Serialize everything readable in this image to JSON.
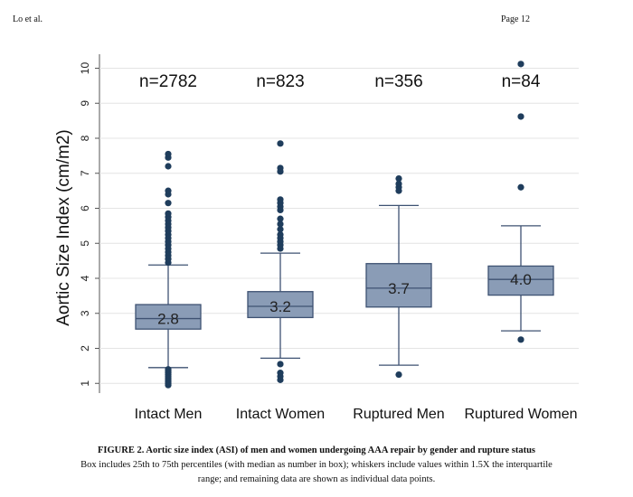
{
  "header": {
    "left": "Lo et al.",
    "right": "Page 12"
  },
  "caption": {
    "title": "FIGURE 2. Aortic size index (ASI) of men and women undergoing AAA repair by gender and rupture status",
    "line1": "Box includes 25th to 75th percentiles (with median as number in box); whiskers include values within 1.5X the interquartile",
    "line2": "range; and remaining data are shown as individual data points."
  },
  "chart_data": {
    "type": "box",
    "title": "",
    "xlabel": "",
    "ylabel": "Aortic Size Index (cm/m2)",
    "ylim": [
      0.8,
      10.4
    ],
    "yticks": [
      1,
      2,
      3,
      4,
      5,
      6,
      7,
      8,
      9,
      10
    ],
    "grid": true,
    "categories": [
      "Intact Men",
      "Intact Women",
      "Ruptured Men",
      "Ruptured Women"
    ],
    "groups": [
      {
        "name": "Intact Men",
        "n_label": "n=2782",
        "median_label": "2.8",
        "q1": 2.55,
        "median": 2.85,
        "q3": 3.25,
        "whisker_low": 1.45,
        "whisker_high": 4.38,
        "outliers": [
          0.95,
          1.0,
          1.05,
          1.1,
          1.15,
          1.2,
          1.25,
          1.3,
          1.35,
          1.4,
          4.45,
          4.55,
          4.65,
          4.75,
          4.85,
          4.95,
          5.05,
          5.15,
          5.25,
          5.35,
          5.45,
          5.55,
          5.65,
          5.75,
          5.85,
          6.15,
          6.4,
          6.5,
          7.2,
          7.45,
          7.55
        ]
      },
      {
        "name": "Intact Women",
        "n_label": "n=823",
        "median_label": "3.2",
        "q1": 2.88,
        "median": 3.2,
        "q3": 3.62,
        "whisker_low": 1.72,
        "whisker_high": 4.72,
        "outliers": [
          1.1,
          1.2,
          1.3,
          1.55,
          4.85,
          4.95,
          5.05,
          5.15,
          5.25,
          5.4,
          5.55,
          5.7,
          5.95,
          6.05,
          6.15,
          6.25,
          7.05,
          7.15,
          7.85
        ]
      },
      {
        "name": "Ruptured Men",
        "n_label": "n=356",
        "median_label": "3.7",
        "q1": 3.18,
        "median": 3.72,
        "q3": 4.42,
        "whisker_low": 1.52,
        "whisker_high": 6.08,
        "outliers": [
          1.25,
          6.5,
          6.6,
          6.7,
          6.85
        ]
      },
      {
        "name": "Ruptured Women",
        "n_label": "n=84",
        "median_label": "4.0",
        "q1": 3.52,
        "median": 3.97,
        "q3": 4.35,
        "whisker_low": 2.5,
        "whisker_high": 5.5,
        "outliers": [
          2.25,
          6.6,
          8.62,
          10.12
        ]
      }
    ],
    "colors": {
      "box_fill": "#8a9cb6",
      "box_stroke": "#3e5272",
      "marker": "#1f3d5c",
      "grid": "#e4e4e4"
    }
  }
}
